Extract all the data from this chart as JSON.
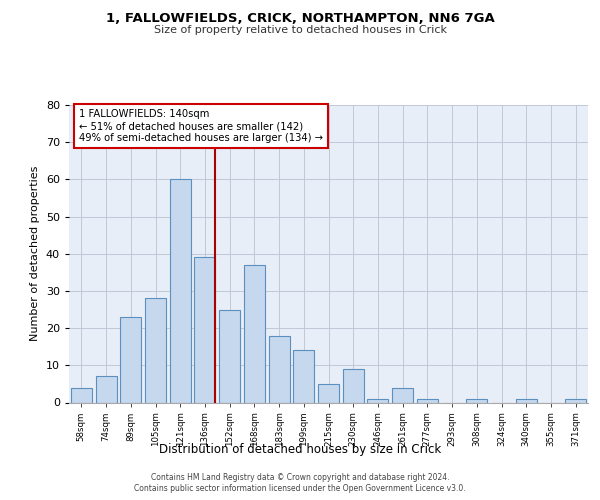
{
  "title1": "1, FALLOWFIELDS, CRICK, NORTHAMPTON, NN6 7GA",
  "title2": "Size of property relative to detached houses in Crick",
  "xlabel": "Distribution of detached houses by size in Crick",
  "ylabel": "Number of detached properties",
  "categories": [
    "58sqm",
    "74sqm",
    "89sqm",
    "105sqm",
    "121sqm",
    "136sqm",
    "152sqm",
    "168sqm",
    "183sqm",
    "199sqm",
    "215sqm",
    "230sqm",
    "246sqm",
    "261sqm",
    "277sqm",
    "293sqm",
    "308sqm",
    "324sqm",
    "340sqm",
    "355sqm",
    "371sqm"
  ],
  "values": [
    4,
    7,
    23,
    28,
    60,
    39,
    25,
    37,
    18,
    14,
    5,
    9,
    1,
    4,
    1,
    0,
    1,
    0,
    1,
    0,
    1
  ],
  "bar_color": "#c5d8ed",
  "bar_edge_color": "#5a8fc0",
  "vline_color": "#aa0000",
  "annotation_text": "1 FALLOWFIELDS: 140sqm\n← 51% of detached houses are smaller (142)\n49% of semi-detached houses are larger (134) →",
  "annotation_box_color": "#ffffff",
  "annotation_box_edge": "#cc0000",
  "ylim": [
    0,
    80
  ],
  "yticks": [
    0,
    10,
    20,
    30,
    40,
    50,
    60,
    70,
    80
  ],
  "grid_color": "#c0c8d8",
  "bg_color": "#e8eef8",
  "footer1": "Contains HM Land Registry data © Crown copyright and database right 2024.",
  "footer2": "Contains public sector information licensed under the Open Government Licence v3.0."
}
